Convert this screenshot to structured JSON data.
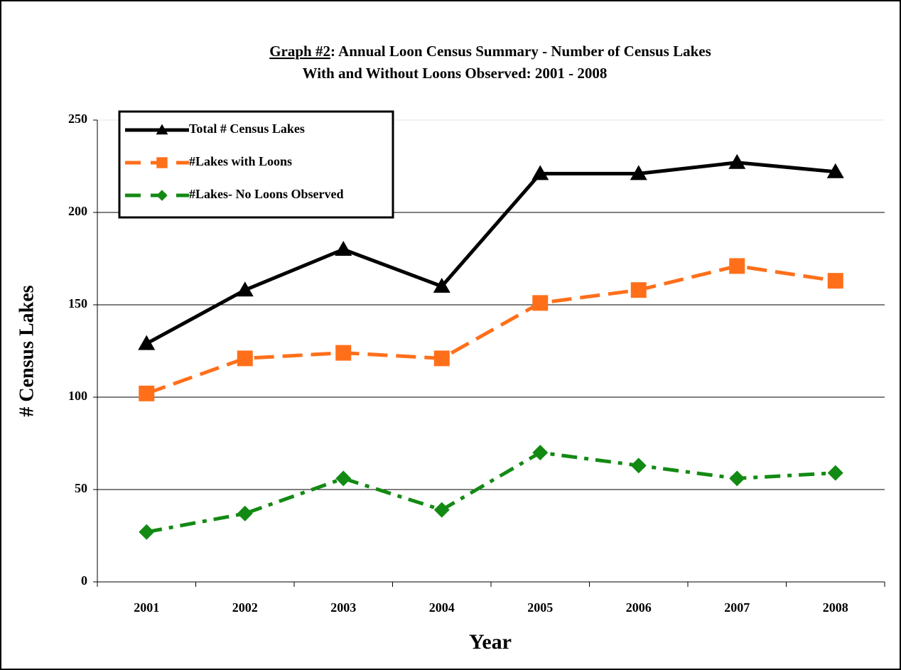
{
  "chart_data": {
    "type": "line",
    "title_label": "Graph #2",
    "title": [
      ": Annual Loon Census Summary - Number of  Census Lakes",
      "With and Without Loons Observed: 2001 - 2008"
    ],
    "x_label": "Year",
    "y_label": "# Census Lakes",
    "categories": [
      "2001",
      "2002",
      "2003",
      "2004",
      "2005",
      "2006",
      "2007",
      "2008"
    ],
    "series": [
      {
        "name": "Total # Census Lakes",
        "color": "#000000",
        "linestyle": "solid",
        "marker": "triangle",
        "values": [
          129,
          158,
          180,
          160,
          221,
          221,
          227,
          222
        ]
      },
      {
        "name": "#Lakes with Loons",
        "color": "#ff6f1a",
        "linestyle": "dashed",
        "marker": "square",
        "values": [
          102,
          121,
          124,
          121,
          151,
          158,
          171,
          163
        ]
      },
      {
        "name": "#Lakes- No Loons Observed",
        "color": "#138a13",
        "linestyle": "dashdot",
        "marker": "diamond",
        "values": [
          27,
          37,
          56,
          39,
          70,
          63,
          56,
          59
        ]
      }
    ],
    "ylim": [
      0,
      250
    ],
    "yticks": [
      0,
      50,
      100,
      150,
      200,
      250
    ],
    "grid": true,
    "legend": "upper left"
  }
}
